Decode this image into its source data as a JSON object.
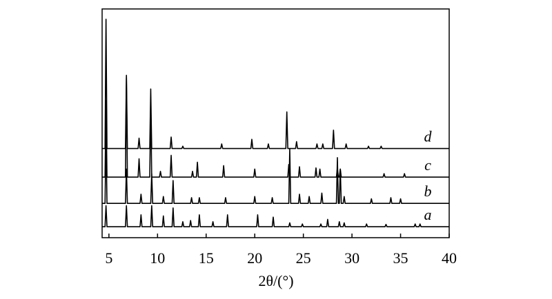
{
  "chart_data": {
    "type": "line",
    "x_label": "2θ/(°)",
    "xlim": [
      4.3,
      40
    ],
    "xticks": [
      5,
      10,
      15,
      20,
      25,
      30,
      35,
      40
    ],
    "ylim": [
      0,
      100
    ],
    "grid": false,
    "series": [
      {
        "name": "a",
        "color": "#000000",
        "x": [
          4.3,
          4.6,
          4.7,
          4.8,
          6.7,
          6.8,
          6.9,
          8.2,
          8.3,
          8.4,
          9.3,
          9.4,
          9.5,
          10.5,
          10.6,
          10.7,
          11.5,
          11.6,
          11.7,
          12.5,
          12.6,
          12.7,
          13.3,
          13.4,
          13.5,
          14.2,
          14.3,
          14.4,
          15.6,
          15.7,
          15.8,
          17.1,
          17.2,
          17.3,
          20.2,
          20.3,
          20.4,
          21.8,
          21.9,
          22.0,
          23.5,
          23.6,
          23.7,
          24.8,
          24.9,
          25.0,
          26.7,
          26.8,
          26.9,
          27.4,
          27.5,
          27.6,
          28.6,
          28.7,
          28.8,
          29.1,
          29.2,
          29.3,
          31.4,
          31.5,
          31.6,
          33.4,
          33.5,
          33.6,
          36.4,
          36.5,
          36.6,
          36.9,
          37.0,
          37.1,
          40
        ],
        "values": [
          4.8,
          4.8,
          14,
          4.8,
          4.8,
          14,
          4.8,
          4.8,
          10,
          4.8,
          4.8,
          14,
          4.8,
          4.8,
          9.5,
          4.8,
          4.8,
          13,
          4.8,
          4.8,
          7,
          4.8,
          4.8,
          7.5,
          4.8,
          4.8,
          10,
          4.8,
          4.8,
          7,
          4.8,
          4.8,
          10,
          4.8,
          4.8,
          10,
          4.8,
          4.8,
          9,
          4.8,
          4.8,
          6.5,
          4.8,
          4.8,
          6,
          4.8,
          4.8,
          6,
          4.8,
          4.8,
          8,
          4.8,
          4.8,
          7,
          4.8,
          4.8,
          6.5,
          4.8,
          4.8,
          6,
          4.8,
          4.8,
          5.8,
          4.8,
          4.8,
          6,
          4.8,
          4.8,
          6,
          4.8,
          4.8
        ]
      },
      {
        "name": "b",
        "color": "#000000",
        "x": [
          4.3,
          4.6,
          4.7,
          4.8,
          6.7,
          6.8,
          6.9,
          8.2,
          8.3,
          8.4,
          9.3,
          9.4,
          9.5,
          10.5,
          10.6,
          10.7,
          11.5,
          11.6,
          11.7,
          13.4,
          13.5,
          13.6,
          14.2,
          14.3,
          14.4,
          16.9,
          17.0,
          17.1,
          19.9,
          20.0,
          20.1,
          21.7,
          21.8,
          21.9,
          23.5,
          23.6,
          23.7,
          24.5,
          24.6,
          24.7,
          25.5,
          25.6,
          25.7,
          26.8,
          26.9,
          27.0,
          28.4,
          28.5,
          28.6,
          28.7,
          28.8,
          28.9,
          29.1,
          29.2,
          29.3,
          31.9,
          32.0,
          32.1,
          33.9,
          34.0,
          34.1,
          34.9,
          35.0,
          35.1,
          40
        ],
        "values": [
          15,
          15,
          45,
          15,
          15,
          30,
          15,
          15,
          19,
          15,
          15,
          28,
          15,
          15,
          18,
          15,
          15,
          25,
          15,
          15,
          17.5,
          15,
          15,
          17.5,
          15,
          15,
          17.5,
          15,
          15,
          18,
          15,
          15,
          17.5,
          15,
          15,
          39,
          15,
          15,
          19,
          15,
          15,
          18,
          15,
          15,
          19.5,
          15,
          15,
          35,
          15,
          15,
          30,
          15,
          15,
          18,
          15,
          15,
          17,
          15,
          15,
          17.5,
          15,
          15,
          17,
          15,
          15
        ]
      },
      {
        "name": "c",
        "color": "#000000",
        "x": [
          4.3,
          4.6,
          4.7,
          4.8,
          6.7,
          6.8,
          6.9,
          8.0,
          8.1,
          8.2,
          9.2,
          9.3,
          9.4,
          10.2,
          10.3,
          10.4,
          11.3,
          11.4,
          11.5,
          13.5,
          13.6,
          13.7,
          14.0,
          14.1,
          14.2,
          16.7,
          16.8,
          16.9,
          19.9,
          20.0,
          20.1,
          23.4,
          23.5,
          23.6,
          24.5,
          24.6,
          24.7,
          26.2,
          26.3,
          26.4,
          26.6,
          26.7,
          26.8,
          28.4,
          28.5,
          28.6,
          28.7,
          28.8,
          28.9,
          33.2,
          33.3,
          33.4,
          35.3,
          35.4,
          35.5,
          40
        ],
        "values": [
          26.5,
          26.5,
          60,
          26.5,
          26.5,
          70,
          26.5,
          26.5,
          34.5,
          26.5,
          26.5,
          60,
          26.5,
          26.5,
          29,
          26.5,
          26.5,
          36,
          26.5,
          26.5,
          29,
          26.5,
          26.5,
          33,
          26.5,
          26.5,
          31.5,
          26.5,
          26.5,
          30,
          26.5,
          26.5,
          32,
          26.5,
          26.5,
          31,
          26.5,
          26.5,
          30.5,
          26.5,
          26.5,
          30,
          26.5,
          26.5,
          30.5,
          26.5,
          26.5,
          30,
          26.5,
          26.5,
          28,
          26.5,
          26.5,
          28,
          26.5,
          26.5
        ]
      },
      {
        "name": "d",
        "color": "#000000",
        "x": [
          4.3,
          4.6,
          4.7,
          4.8,
          6.7,
          6.8,
          6.9,
          8.0,
          8.1,
          8.2,
          9.2,
          9.3,
          9.4,
          11.3,
          11.4,
          11.5,
          12.5,
          12.6,
          12.7,
          16.5,
          16.6,
          16.7,
          19.6,
          19.7,
          19.8,
          21.3,
          21.4,
          21.5,
          23.2,
          23.3,
          23.4,
          24.2,
          24.3,
          24.4,
          26.3,
          26.4,
          26.5,
          26.9,
          27.0,
          27.1,
          28.0,
          28.1,
          28.2,
          29.3,
          29.4,
          29.5,
          31.6,
          31.7,
          31.8,
          32.9,
          33.0,
          33.1,
          40
        ],
        "values": [
          39,
          39,
          95.5,
          39,
          39,
          71,
          39,
          39,
          43.5,
          39,
          39,
          65,
          39,
          39,
          44,
          39,
          39,
          40,
          39,
          39,
          41,
          39,
          39,
          43,
          39,
          39,
          41,
          39,
          39,
          55,
          39,
          39,
          42,
          39,
          39,
          41,
          39,
          39,
          41,
          39,
          39,
          47,
          39,
          39,
          41,
          39,
          39,
          40,
          39,
          39,
          40,
          39,
          39
        ]
      }
    ]
  }
}
